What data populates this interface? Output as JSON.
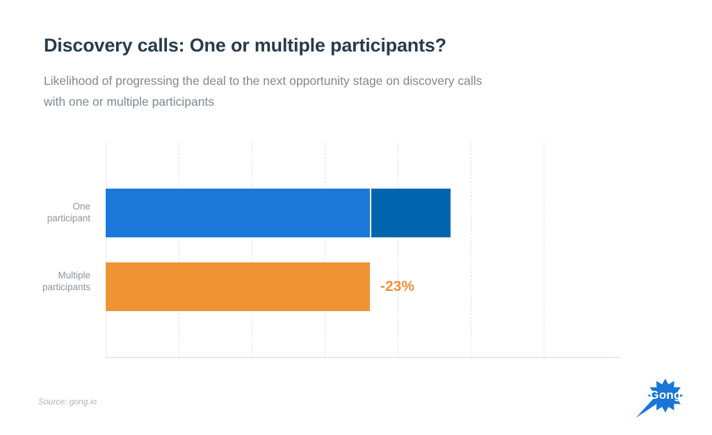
{
  "header": {
    "title": "Discovery calls: One or multiple participants?",
    "subtitle_lines": [
      "Likelihood of progressing the deal to the next opportunity stage on discovery calls",
      "with one or multiple participants"
    ]
  },
  "chart_data": {
    "type": "bar",
    "orientation": "horizontal",
    "title": "Discovery calls: One or multiple participants?",
    "subtitle": "Likelihood of progressing the deal to the next opportunity stage on discovery calls with one or multiple participants",
    "categories": [
      "One participant",
      "Multiple participants"
    ],
    "unit": "relative likelihood (one participant bar = 100)",
    "series": [
      {
        "name": "One participant",
        "total": 100,
        "segments": [
          {
            "name": "portion equal to multiple-participants bar",
            "value": 77,
            "color": "#1b78d8"
          },
          {
            "name": "additional likelihood vs multiple participants",
            "value": 23,
            "color": "#0365ae"
          }
        ]
      },
      {
        "name": "Multiple participants",
        "total": 77,
        "color": "#ef9434"
      }
    ],
    "annotation": {
      "text": "-23%",
      "color": "#f09138",
      "attached_to": "Multiple participants"
    },
    "axes": {
      "x_tick_labels_visible": false,
      "y_tick_labels_visible": false,
      "gridlines": "vertical-dashed",
      "gridline_count": 6
    },
    "xlim": [
      0,
      150
    ],
    "legend": "none"
  },
  "footer": {
    "source": "Source: gong.io",
    "logo": {
      "text": "Gong",
      "color": "#1a75d6"
    }
  },
  "colors": {
    "title": "#273b4d",
    "subtitle": "#7d8893",
    "category_label": "#8b949e",
    "source_text": "#a9b4c1",
    "x_axis_line": "#cfdde9",
    "y_axis_line": "#e3eaf0",
    "gridline": "#dde4eb",
    "bar_light_blue": "#1b78d8",
    "bar_dark_blue": "#0365ae",
    "bar_orange": "#ef9434"
  }
}
